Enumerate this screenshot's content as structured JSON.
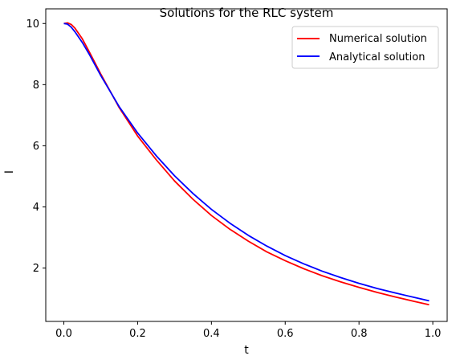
{
  "chart_data": {
    "type": "line",
    "title": "Solutions for the RLC system",
    "xlabel": "t",
    "ylabel": "I",
    "xlim": [
      -0.049,
      1.039
    ],
    "ylim": [
      0.255,
      10.48
    ],
    "xticks": [
      0.0,
      0.2,
      0.4,
      0.6,
      0.8,
      1.0
    ],
    "xtick_labels": [
      "0.0",
      "0.2",
      "0.4",
      "0.6",
      "0.8",
      "1.0"
    ],
    "yticks": [
      2,
      4,
      6,
      8,
      10
    ],
    "ytick_labels": [
      "2",
      "4",
      "6",
      "8",
      "10"
    ],
    "grid": false,
    "legend_position": "top-right",
    "series": [
      {
        "name": "Numerical solution",
        "color": "#ff0000",
        "x": [
          0.0,
          0.01,
          0.02,
          0.03,
          0.05,
          0.07,
          0.1,
          0.15,
          0.2,
          0.25,
          0.3,
          0.35,
          0.4,
          0.45,
          0.5,
          0.55,
          0.6,
          0.65,
          0.7,
          0.75,
          0.8,
          0.85,
          0.9,
          0.95,
          0.99
        ],
        "y": [
          10.0,
          10.02,
          9.97,
          9.85,
          9.5,
          9.05,
          8.35,
          7.25,
          6.32,
          5.55,
          4.85,
          4.25,
          3.72,
          3.27,
          2.88,
          2.53,
          2.24,
          1.98,
          1.75,
          1.55,
          1.37,
          1.2,
          1.05,
          0.91,
          0.8
        ]
      },
      {
        "name": "Analytical solution",
        "color": "#0000ff",
        "x": [
          0.0,
          0.01,
          0.02,
          0.03,
          0.05,
          0.07,
          0.1,
          0.15,
          0.2,
          0.25,
          0.3,
          0.35,
          0.4,
          0.45,
          0.5,
          0.55,
          0.6,
          0.65,
          0.7,
          0.75,
          0.8,
          0.85,
          0.9,
          0.95,
          0.99
        ],
        "y": [
          10.0,
          9.98,
          9.88,
          9.73,
          9.38,
          8.97,
          8.3,
          7.28,
          6.42,
          5.68,
          5.02,
          4.44,
          3.92,
          3.47,
          3.07,
          2.72,
          2.41,
          2.14,
          1.9,
          1.69,
          1.5,
          1.33,
          1.18,
          1.04,
          0.93
        ]
      }
    ]
  }
}
